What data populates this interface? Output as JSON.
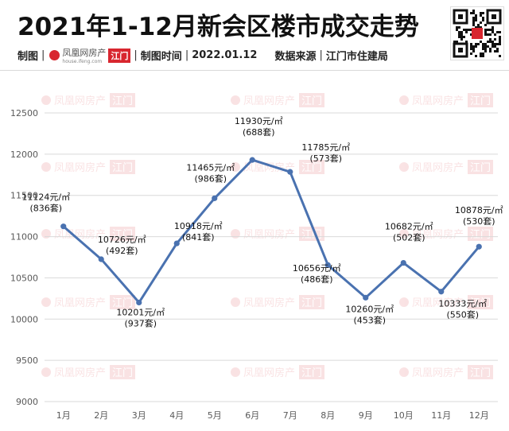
{
  "header": {
    "title": "2021年1-12月新会区楼市成交走势",
    "meta_label_1": "制图",
    "logo_text": "凤凰网房产",
    "logo_sub": "house.ifeng.com",
    "logo_city": "江门",
    "meta_label_2": "制图时间",
    "meta_date": "2022.01.12",
    "meta_label_3": "数据来源",
    "meta_source": "江门市住建局"
  },
  "colors": {
    "line": "#4a72b0",
    "grid": "#d9d9d9",
    "axis_text": "#595959",
    "label_text": "#111111",
    "brand_red": "#d8262f"
  },
  "watermark": {
    "text": "凤凰网房产",
    "badge": "江门"
  },
  "chart_data": {
    "type": "line",
    "categories": [
      "1月",
      "2月",
      "3月",
      "4月",
      "5月",
      "6月",
      "7月",
      "8月",
      "9月",
      "10月",
      "11月",
      "12月"
    ],
    "series": [
      {
        "values": [
          11124,
          10726,
          10201,
          10918,
          11465,
          11930,
          11785,
          10656,
          10260,
          10682,
          10333,
          10878
        ],
        "volumes": [
          836,
          492,
          937,
          841,
          986,
          688,
          573,
          486,
          453,
          502,
          550,
          530
        ]
      }
    ],
    "price_labels": [
      "11124元/㎡",
      "10726元/㎡",
      "10201元/㎡",
      "10918元/㎡",
      "11465元/㎡",
      "11930元/㎡",
      "11785元/㎡",
      "10656元/㎡",
      "10260元/㎡",
      "10682元/㎡",
      "10333元/㎡",
      "10878元/㎡"
    ],
    "volume_labels": [
      "(836套)",
      "(492套)",
      "(937套)",
      "(841套)",
      "(986套)",
      "(688套)",
      "(573套)",
      "(486套)",
      "(453套)",
      "(502套)",
      "(550套)",
      "(530套)"
    ],
    "yticks": [
      9000,
      9500,
      10000,
      10500,
      11000,
      11500,
      12000,
      12500
    ],
    "ylim": [
      9000,
      12500
    ],
    "grid": true,
    "legend": "none"
  }
}
